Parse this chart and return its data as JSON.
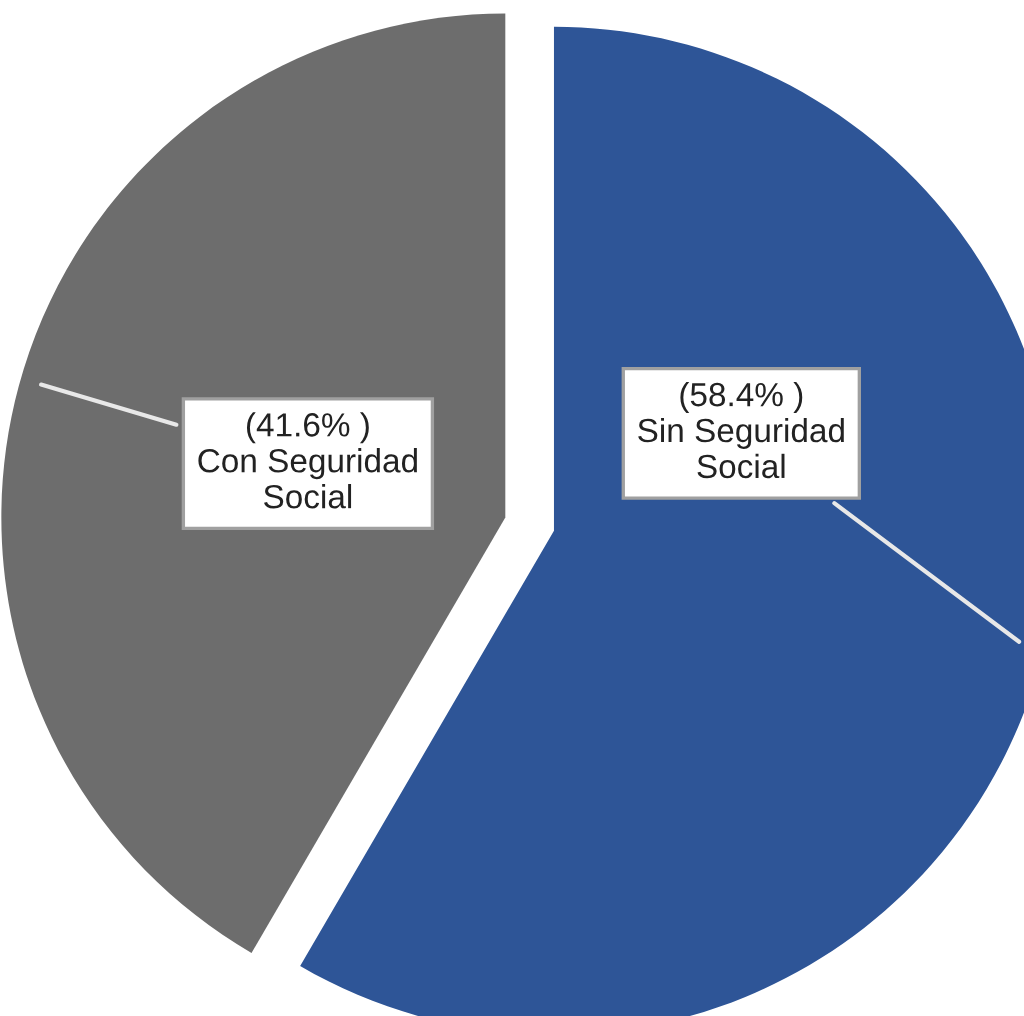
{
  "chart_data": {
    "type": "pie",
    "categories": [
      "Sin Seguridad Social",
      "Con Seguridad Social"
    ],
    "values": [
      58.4,
      41.6
    ],
    "colors": [
      "#2e5597",
      "#6d6d6d"
    ],
    "value_labels": [
      "(58.4% )",
      "(41.6% )"
    ]
  }
}
